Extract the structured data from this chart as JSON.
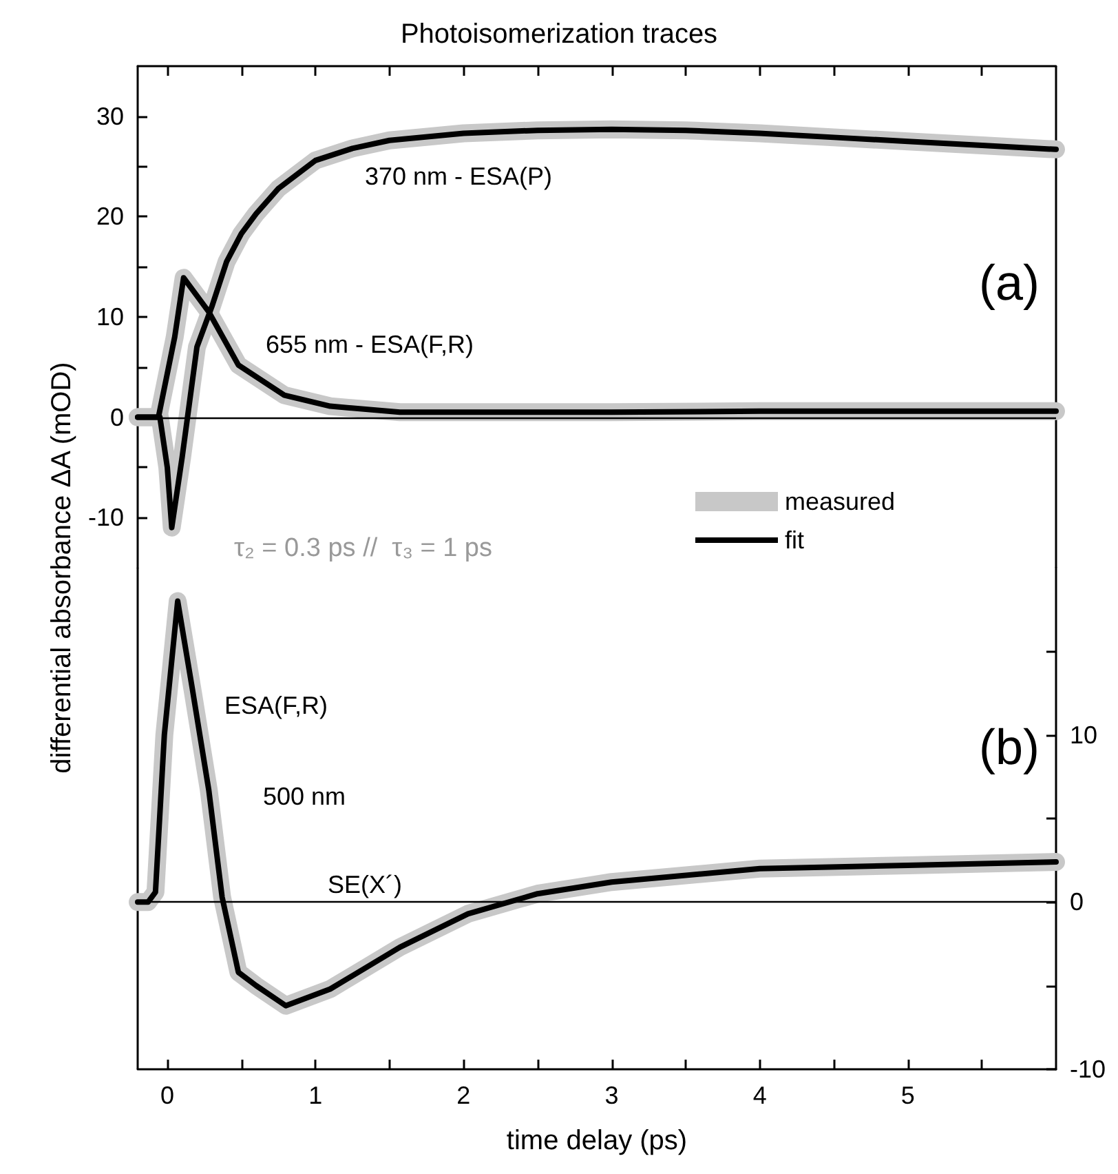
{
  "chart_data": [
    {
      "type": "line",
      "title": "Photoisomerization traces",
      "ylabel": "differential absorbance ΔA (mOD)",
      "xlim": [
        -0.2,
        6
      ],
      "xticks": [
        0,
        {
          "value": 0.5,
          "label": null
        },
        1,
        {
          "value": 1.5,
          "label": null
        },
        2,
        {
          "value": 2.5,
          "label": null
        },
        3,
        {
          "value": 3.5,
          "label": null
        },
        4,
        {
          "value": 4.5,
          "label": null
        },
        5,
        {
          "value": 5.5,
          "label": null
        }
      ],
      "ylim": [
        -15,
        35
      ],
      "yticks": [
        -10,
        {
          "value": -5,
          "label": null
        },
        0,
        {
          "value": 5,
          "label": null
        },
        10,
        {
          "value": 15,
          "label": null
        },
        20,
        {
          "value": 25,
          "label": null
        },
        30
      ],
      "tick_labels": "y",
      "grid": false,
      "legend": "bottom right",
      "marker": "none",
      "line_style": "solid",
      "ref_lines": [
        {
          "axis": "y",
          "value": 0,
          "color": "#000000"
        }
      ],
      "annotations": [
        "370 nm - ESA(P)",
        "655 nm - ESA(F,R)",
        "(a)",
        "τ₂ = 0.3 ps //  τ₃ = 1 ps"
      ],
      "series": [
        {
          "name": "measured",
          "color": "#c8c8c8",
          "x": [
            -0.2,
            -0.05,
            0,
            0.03,
            0.1,
            0.2,
            0.3,
            0.4,
            0.5,
            0.6,
            0.75,
            1,
            1.25,
            1.5,
            2,
            2.5,
            3,
            3.5,
            4,
            4.5,
            5,
            5.5,
            6
          ],
          "values": [
            0,
            0,
            -5,
            -11,
            -4,
            7,
            11,
            15.5,
            18.3,
            20.3,
            22.8,
            25.6,
            26.8,
            27.6,
            28.3,
            28.6,
            28.7,
            28.6,
            28.3,
            27.9,
            27.5,
            27.1,
            26.7
          ]
        },
        {
          "color": "#c8c8c8",
          "x": [
            -0.2,
            -0.06,
            0.05,
            0.11,
            0.28,
            0.48,
            0.79,
            1.1,
            1.57,
            2,
            3,
            4,
            5,
            6
          ],
          "values": [
            0,
            0,
            8,
            13.9,
            10.5,
            5.2,
            2.2,
            1.1,
            0.5,
            0.5,
            0.5,
            0.6,
            0.6,
            0.6
          ]
        },
        {
          "name": "fit",
          "color": "#000000",
          "x": [
            -0.2,
            -0.05,
            0,
            0.03,
            0.1,
            0.2,
            0.3,
            0.4,
            0.5,
            0.6,
            0.75,
            1,
            1.25,
            1.5,
            2,
            2.5,
            3,
            3.5,
            4,
            4.5,
            5,
            5.5,
            6
          ],
          "values": [
            0,
            0,
            -5,
            -11,
            -4,
            7,
            11,
            15.5,
            18.3,
            20.3,
            22.8,
            25.6,
            26.8,
            27.6,
            28.3,
            28.6,
            28.7,
            28.6,
            28.3,
            27.9,
            27.5,
            27.1,
            26.7
          ]
        },
        {
          "color": "#000000",
          "x": [
            -0.2,
            -0.06,
            0.05,
            0.11,
            0.28,
            0.48,
            0.79,
            1.1,
            1.57,
            2,
            3,
            4,
            5,
            6
          ],
          "values": [
            0,
            0,
            8,
            13.9,
            10.5,
            5.2,
            2.2,
            1.1,
            0.5,
            0.5,
            0.5,
            0.6,
            0.6,
            0.6
          ]
        }
      ]
    },
    {
      "type": "line",
      "xlabel": "time delay (ps)",
      "xlim": [
        -0.2,
        6
      ],
      "xticks": [
        0,
        {
          "value": 0.5,
          "label": null
        },
        1,
        {
          "value": 1.5,
          "label": null
        },
        2,
        {
          "value": 2.5,
          "label": null
        },
        3,
        {
          "value": 3.5,
          "label": null
        },
        4,
        {
          "value": 4.5,
          "label": null
        },
        5,
        {
          "value": 5.5,
          "label": null
        }
      ],
      "y2lim": [
        -10,
        20
      ],
      "y2ticks": [
        -10,
        {
          "value": -5,
          "label": null
        },
        0,
        {
          "value": 5,
          "label": null
        },
        10,
        {
          "value": 15,
          "label": null
        }
      ],
      "grid": false,
      "marker": "none",
      "line_style": "solid",
      "ref_lines": [
        {
          "axis": "y2",
          "value": 0,
          "color": "#000000"
        }
      ],
      "annotations": [
        "ESA(F,R)",
        "500 nm",
        "SE(X´)",
        "(b)"
      ],
      "series": [
        {
          "color": "#c8c8c8",
          "axis": "y2",
          "x": [
            -0.2,
            -0.13,
            -0.08,
            -0.02,
            0.07,
            0.17,
            0.28,
            0.37,
            0.48,
            0.6,
            0.8,
            1.1,
            1.57,
            2.03,
            2.5,
            3,
            4,
            5,
            6
          ],
          "values": [
            0,
            0,
            0.6,
            10,
            18,
            12.7,
            6.7,
            0.3,
            -4.2,
            -5,
            -6.2,
            -5.2,
            -2.7,
            -0.7,
            0.5,
            1.2,
            2,
            2.2,
            2.4
          ]
        },
        {
          "color": "#000000",
          "axis": "y2",
          "x": [
            -0.2,
            -0.13,
            -0.08,
            -0.02,
            0.07,
            0.17,
            0.28,
            0.37,
            0.48,
            0.6,
            0.8,
            1.1,
            1.57,
            2.03,
            2.5,
            3,
            4,
            5,
            6
          ],
          "values": [
            0,
            0,
            0.6,
            10,
            18,
            12.7,
            6.7,
            0.3,
            -4.2,
            -5,
            -6.2,
            -5.2,
            -2.7,
            -0.7,
            0.5,
            1.2,
            2,
            2.2,
            2.4
          ]
        }
      ]
    }
  ]
}
